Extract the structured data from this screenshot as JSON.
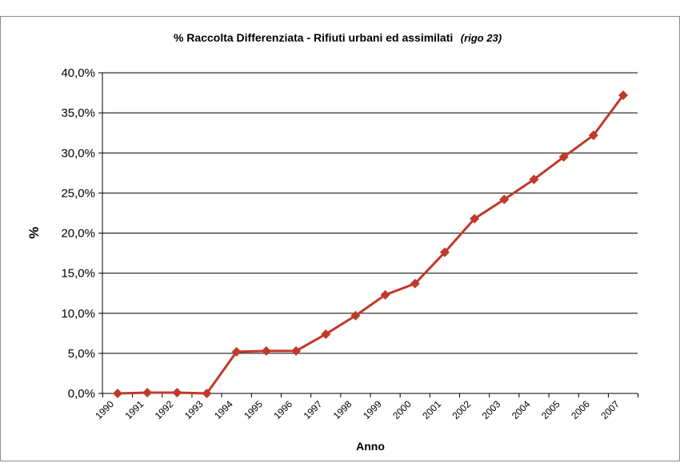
{
  "chart_data": {
    "type": "line",
    "title": "% Raccolta Differenziata - Rifiuti urbani ed assimilati",
    "title_note": "(rigo 23)",
    "xlabel": "Anno",
    "ylabel": "%",
    "categories": [
      "1990",
      "1991",
      "1992",
      "1993",
      "1994",
      "1995",
      "1996",
      "1997",
      "1998",
      "1999",
      "2000",
      "2001",
      "2002",
      "2003",
      "2004",
      "2005",
      "2006",
      "2007"
    ],
    "series": [
      {
        "values": [
          0.0,
          0.1,
          0.1,
          0.0,
          5.2,
          5.3,
          5.3,
          7.4,
          9.7,
          12.3,
          13.7,
          17.6,
          21.8,
          24.2,
          26.7,
          29.5,
          32.2,
          37.2
        ],
        "color": "#c0392b",
        "marker": "diamond"
      }
    ],
    "ylim": [
      0,
      40
    ],
    "yticks": [
      "0,0%",
      "5,0%",
      "10,0%",
      "15,0%",
      "20,0%",
      "25,0%",
      "30,0%",
      "35,0%",
      "40,0%"
    ],
    "grid": true,
    "legend": "none"
  }
}
